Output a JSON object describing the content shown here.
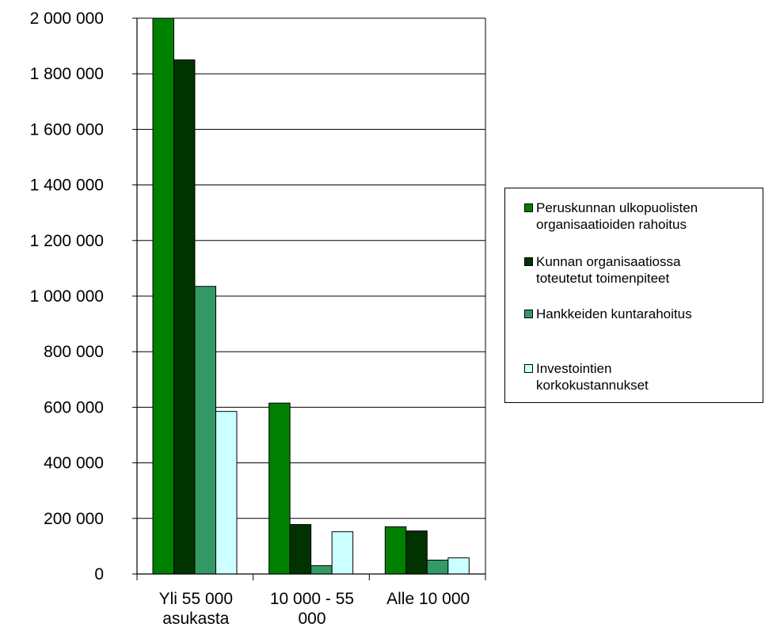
{
  "chart_data": {
    "type": "bar",
    "categories": [
      [
        "Yli 55 000",
        "asukasta"
      ],
      [
        "10 000 - 55",
        "000"
      ],
      [
        "Alle 10 000"
      ]
    ],
    "series": [
      {
        "name": "Peruskunnan ulkopuolisten organisaatioiden rahoitus",
        "color": "#008000",
        "values": [
          2000000,
          615000,
          170000
        ]
      },
      {
        "name": "Kunnan organisaatiossa toteutetut toimenpiteet",
        "color": "#003300",
        "values": [
          1850000,
          178000,
          155000
        ]
      },
      {
        "name": "Hankkeiden kuntarahoitus",
        "color": "#339966",
        "values": [
          1035000,
          30000,
          50000
        ]
      },
      {
        "name": "Investointien korkokustannukset",
        "color": "#CCFFFF",
        "values": [
          585000,
          152000,
          58000
        ]
      }
    ],
    "ylim": [
      0,
      2000000
    ],
    "yticks": [
      "0",
      "200 000",
      "400 000",
      "600 000",
      "800 000",
      "1 000 000",
      "1 200 000",
      "1 400 000",
      "1 600 000",
      "1 800 000",
      "2 000 000"
    ],
    "grid": true,
    "legend_position": "right"
  },
  "legend": {
    "items": [
      {
        "lines": [
          "Peruskunnan ulkopuolisten",
          "organisaatioiden rahoitus"
        ]
      },
      {
        "lines": [
          "Kunnan organisaatiossa",
          "toteutetut toimenpiteet"
        ]
      },
      {
        "lines": [
          "Hankkeiden kuntarahoitus"
        ]
      },
      {
        "lines": [
          "Investointien",
          "korkokustannukset"
        ]
      }
    ]
  }
}
